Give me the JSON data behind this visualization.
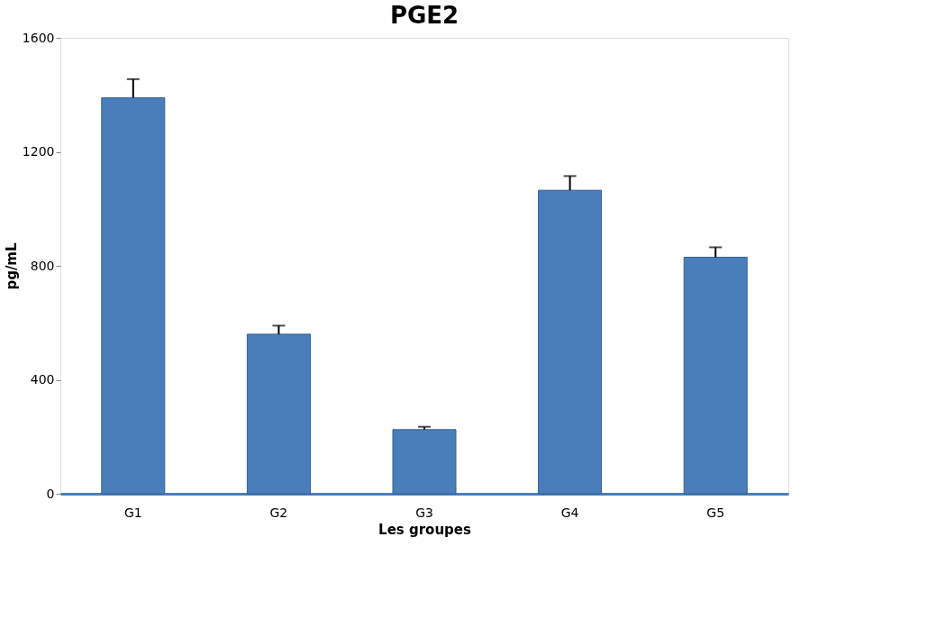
{
  "chart_data": {
    "type": "bar",
    "title": "PGE2",
    "xlabel": "Les groupes",
    "ylabel": "pg/mL",
    "categories": [
      "G1",
      "G2",
      "G3",
      "G4",
      "G5"
    ],
    "values": [
      1390,
      560,
      225,
      1065,
      830
    ],
    "errors": [
      [
        1390,
        1455
      ],
      [
        560,
        590
      ],
      [
        225,
        235
      ],
      [
        1065,
        1115
      ],
      [
        830,
        865
      ]
    ],
    "color": "#4a7ebb",
    "ylim": [
      0,
      1600
    ],
    "yticks": [
      0,
      400,
      800,
      1200,
      1600
    ],
    "grid": false
  }
}
